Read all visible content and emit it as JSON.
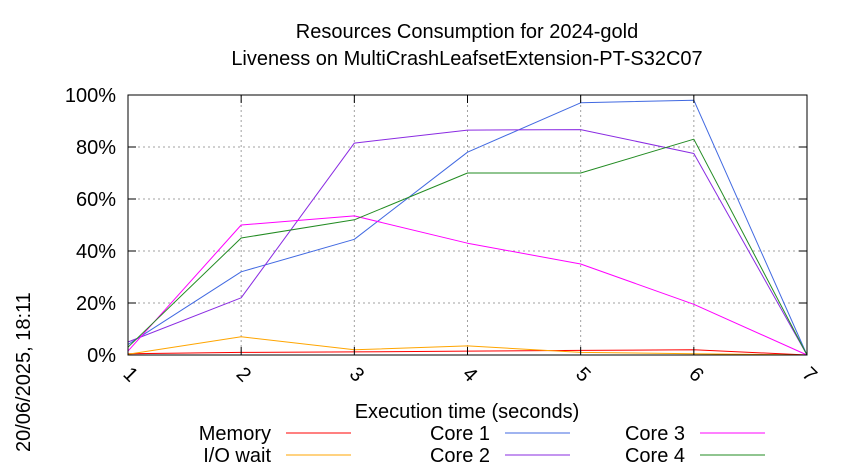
{
  "chart_data": {
    "type": "line",
    "title": [
      "Resources Consumption for 2024-gold",
      "Liveness on MultiCrashLeafsetExtension-PT-S32C07"
    ],
    "xlabel": "Execution time (seconds)",
    "ylabel": "",
    "side_label": "20/06/2025, 18:11",
    "x": [
      1,
      2,
      3,
      4,
      5,
      6,
      7
    ],
    "xlim": [
      1,
      7
    ],
    "ylim": [
      0,
      100
    ],
    "x_ticks": [
      "1",
      "2",
      "3",
      "4",
      "5",
      "6",
      "7"
    ],
    "y_ticks": [
      {
        "value": 0,
        "label": "0%"
      },
      {
        "value": 20,
        "label": "20%"
      },
      {
        "value": 40,
        "label": "40%"
      },
      {
        "value": 60,
        "label": "60%"
      },
      {
        "value": 80,
        "label": "80%"
      },
      {
        "value": 100,
        "label": "100%"
      }
    ],
    "grid": true,
    "legend_position": "bottom",
    "series": [
      {
        "name": "Memory",
        "color": "#ff0000",
        "values": [
          0.5,
          1,
          1.2,
          1.5,
          1.8,
          2,
          0
        ]
      },
      {
        "name": "I/O wait",
        "color": "#ffa500",
        "values": [
          0.3,
          7,
          2,
          3.5,
          1,
          0.5,
          0
        ]
      },
      {
        "name": "Core 1",
        "color": "#4169e1",
        "values": [
          4,
          32,
          44.5,
          78,
          97,
          98,
          0
        ]
      },
      {
        "name": "Core 2",
        "color": "#8a2be2",
        "values": [
          5,
          22,
          81.5,
          86.5,
          86.7,
          77.5,
          0
        ]
      },
      {
        "name": "Core 3",
        "color": "#ff00ff",
        "values": [
          1.5,
          50,
          53.5,
          43,
          35,
          19.5,
          0
        ]
      },
      {
        "name": "Core 4",
        "color": "#228b22",
        "values": [
          3,
          45,
          52,
          70,
          70,
          83,
          0
        ]
      }
    ]
  }
}
